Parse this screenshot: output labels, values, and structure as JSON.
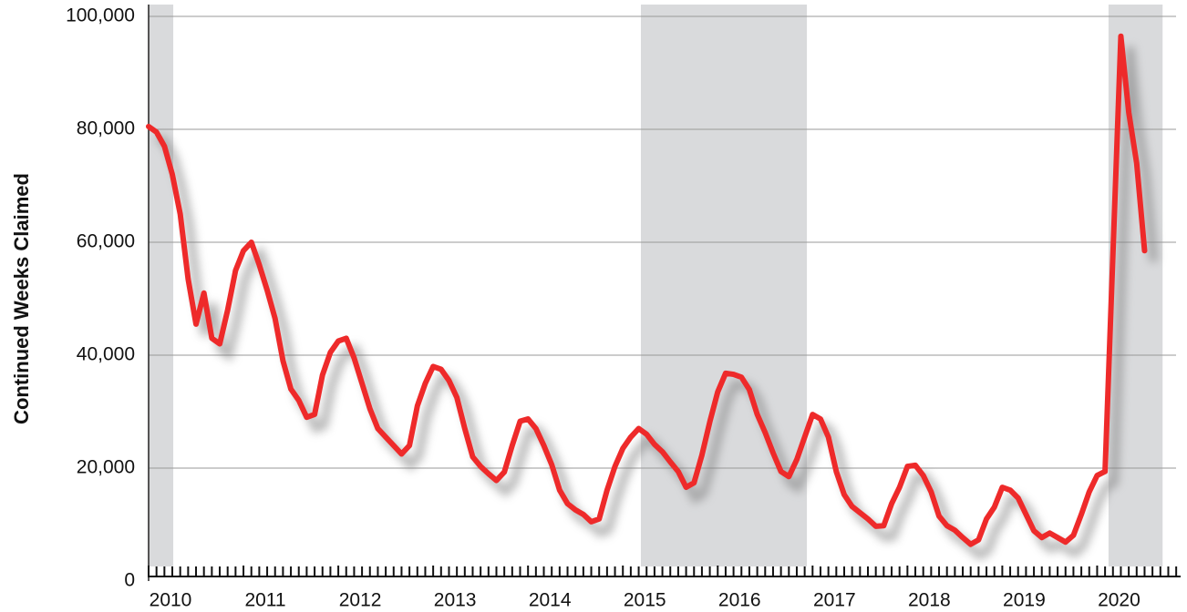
{
  "chart_data": {
    "type": "line",
    "y_label": "Continued Weeks Claimed",
    "x": [
      2010,
      2010.0833,
      2010.1667,
      2010.25,
      2010.3333,
      2010.4167,
      2010.5,
      2010.5833,
      2010.6667,
      2010.75,
      2010.8333,
      2010.9167,
      2011,
      2011.0833,
      2011.1667,
      2011.25,
      2011.3333,
      2011.4167,
      2011.5,
      2011.5833,
      2011.6667,
      2011.75,
      2011.8333,
      2011.9167,
      2012,
      2012.0833,
      2012.1667,
      2012.25,
      2012.3333,
      2012.4167,
      2012.5,
      2012.5833,
      2012.6667,
      2012.75,
      2012.8333,
      2012.9167,
      2013,
      2013.0833,
      2013.1667,
      2013.25,
      2013.3333,
      2013.4167,
      2013.5,
      2013.5833,
      2013.6667,
      2013.75,
      2013.8333,
      2013.9167,
      2014,
      2014.0833,
      2014.1667,
      2014.25,
      2014.3333,
      2014.4167,
      2014.5,
      2014.5833,
      2014.6667,
      2014.75,
      2014.8333,
      2014.9167,
      2015,
      2015.0833,
      2015.1667,
      2015.25,
      2015.3333,
      2015.4167,
      2015.5,
      2015.5833,
      2015.6667,
      2015.75,
      2015.8333,
      2015.9167,
      2016,
      2016.0833,
      2016.1667,
      2016.25,
      2016.3333,
      2016.4167,
      2016.5,
      2016.5833,
      2016.6667,
      2016.75,
      2016.8333,
      2016.9167,
      2017,
      2017.0833,
      2017.1667,
      2017.25,
      2017.3333,
      2017.4167,
      2017.5,
      2017.5833,
      2017.6667,
      2017.75,
      2017.8333,
      2017.9167,
      2018,
      2018.0833,
      2018.1667,
      2018.25,
      2018.3333,
      2018.4167,
      2018.5,
      2018.5833,
      2018.6667,
      2018.75,
      2018.8333,
      2018.9167,
      2019,
      2019.0833,
      2019.1667,
      2019.25,
      2019.3333,
      2019.4167,
      2019.5,
      2019.5833,
      2019.6667,
      2019.75,
      2019.8333,
      2019.9167,
      2020,
      2020.0833,
      2020.1667,
      2020.25,
      2020.3333,
      2020.4167,
      2020.5
    ],
    "values": [
      80500,
      79500,
      77000,
      72000,
      65000,
      53500,
      45500,
      51000,
      43000,
      42000,
      48000,
      55000,
      58500,
      60000,
      56000,
      51500,
      46500,
      39000,
      34000,
      32000,
      29000,
      29500,
      36500,
      40500,
      42500,
      43000,
      39500,
      35000,
      30500,
      27000,
      25500,
      24000,
      22500,
      24000,
      31000,
      35000,
      38000,
      37500,
      35500,
      32500,
      27000,
      22000,
      20300,
      19000,
      17800,
      19300,
      24000,
      28300,
      28700,
      27000,
      24000,
      20600,
      16100,
      13700,
      12600,
      11800,
      10500,
      11000,
      16100,
      20300,
      23500,
      25500,
      27000,
      26000,
      24200,
      22900,
      21100,
      19400,
      16600,
      17400,
      22300,
      28200,
      33500,
      36800,
      36600,
      36100,
      33900,
      29500,
      26300,
      22700,
      19400,
      18500,
      21500,
      25500,
      29500,
      28700,
      25500,
      19400,
      15300,
      13200,
      12100,
      11000,
      9700,
      9800,
      13700,
      16600,
      20300,
      20500,
      18700,
      15800,
      11500,
      9800,
      9000,
      7700,
      6500,
      7300,
      11000,
      13100,
      16600,
      16100,
      14700,
      11800,
      8900,
      7700,
      8500,
      7700,
      6900,
      8100,
      11800,
      15800,
      18700,
      19400,
      58000,
      96500,
      83000,
      74000,
      58500
    ],
    "color": "#ee2a2a",
    "shaded_regions": [
      [
        2010,
        2010.26
      ],
      [
        2015.19,
        2016.94
      ],
      [
        2020.12,
        2020.69
      ]
    ],
    "shade_color": "#d9dadc",
    "xlim": [
      2010,
      2020.88
    ],
    "xticks": [
      2010,
      2011,
      2012,
      2013,
      2014,
      2015,
      2016,
      2017,
      2018,
      2019,
      2020
    ],
    "ylim": [
      0,
      100000
    ],
    "yticks": [
      0,
      {
        "value": 20000,
        "label": "20,000"
      },
      {
        "value": 40000,
        "label": "40,000"
      },
      {
        "value": 60000,
        "label": "60,000"
      },
      {
        "value": 80000,
        "label": "80,000"
      },
      {
        "value": 100000,
        "label": "100,000"
      }
    ],
    "grid": true
  }
}
